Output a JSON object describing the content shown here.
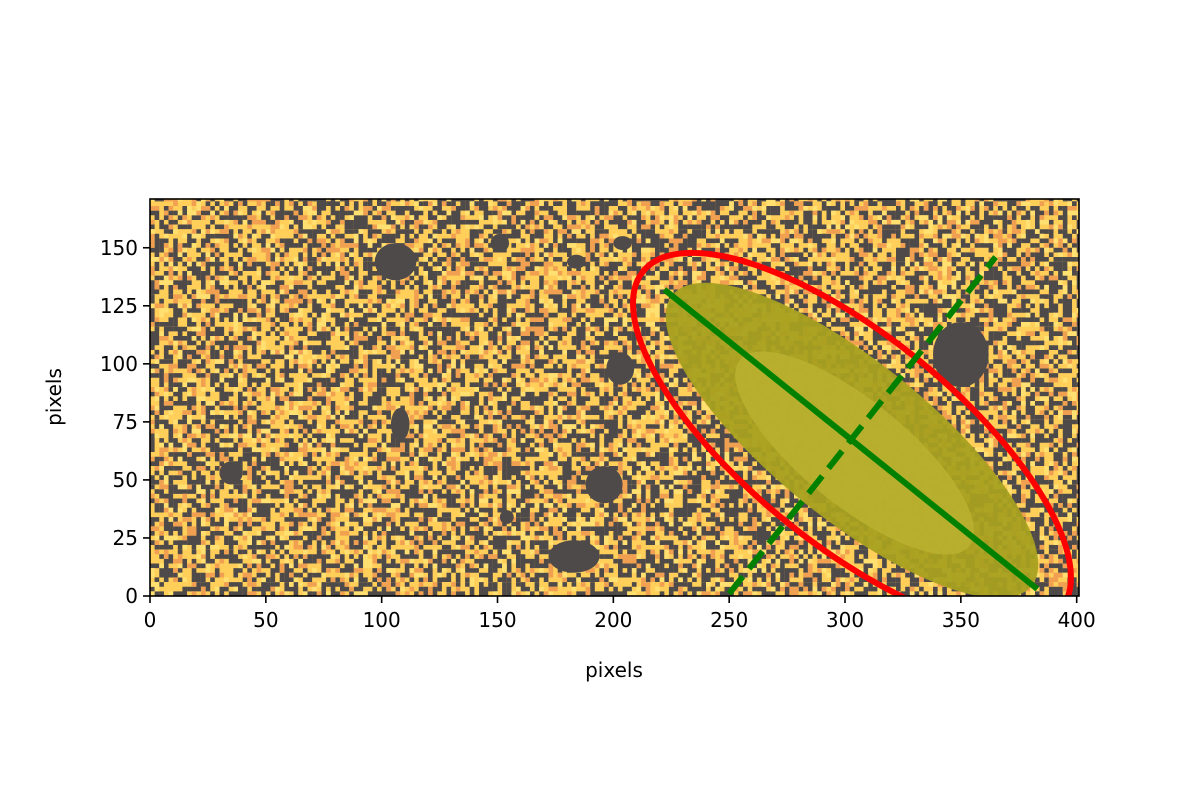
{
  "chart_data": {
    "type": "image",
    "xlabel": "pixels",
    "ylabel": "pixels",
    "xlim": [
      0,
      401
    ],
    "ylim": [
      0,
      171
    ],
    "x_ticks": [
      0,
      50,
      100,
      150,
      200,
      250,
      300,
      350,
      400
    ],
    "y_ticks": [
      0,
      25,
      50,
      75,
      100,
      125,
      150
    ],
    "grid": false,
    "colors": {
      "background_speckle": [
        "#4f4a4a",
        "#ffcf5a",
        "#f0a050",
        "#ffe070"
      ],
      "mask": "#4f4a4a",
      "galaxy": "#a8a020",
      "ellipse": "#ff0000",
      "axes_lines": "#008000"
    },
    "galaxy_center": [
      303,
      67
    ],
    "fit_ellipse": {
      "center": [
        303,
        67
      ],
      "semi_major": 116,
      "semi_minor": 45,
      "angle_deg": -39
    },
    "major_axis": {
      "style": "solid",
      "x": [
        222,
        383
      ],
      "y": [
        132,
        3
      ]
    },
    "minor_axis": {
      "style": "dashed",
      "x": [
        250,
        365
      ],
      "y": [
        1,
        146
      ]
    },
    "masked_sources": [
      {
        "x": 106,
        "y": 144,
        "rx": 9,
        "ry": 8
      },
      {
        "x": 151,
        "y": 152,
        "rx": 4,
        "ry": 4
      },
      {
        "x": 184,
        "y": 144,
        "rx": 4,
        "ry": 3
      },
      {
        "x": 204,
        "y": 152,
        "rx": 4,
        "ry": 3
      },
      {
        "x": 203,
        "y": 98,
        "rx": 6,
        "ry": 7
      },
      {
        "x": 108,
        "y": 74,
        "rx": 4,
        "ry": 7
      },
      {
        "x": 35,
        "y": 53,
        "rx": 5,
        "ry": 5
      },
      {
        "x": 196,
        "y": 48,
        "rx": 8,
        "ry": 8
      },
      {
        "x": 154,
        "y": 34,
        "rx": 3,
        "ry": 3
      },
      {
        "x": 183,
        "y": 17,
        "rx": 11,
        "ry": 7
      },
      {
        "x": 350,
        "y": 104,
        "rx": 12,
        "ry": 14
      }
    ]
  }
}
